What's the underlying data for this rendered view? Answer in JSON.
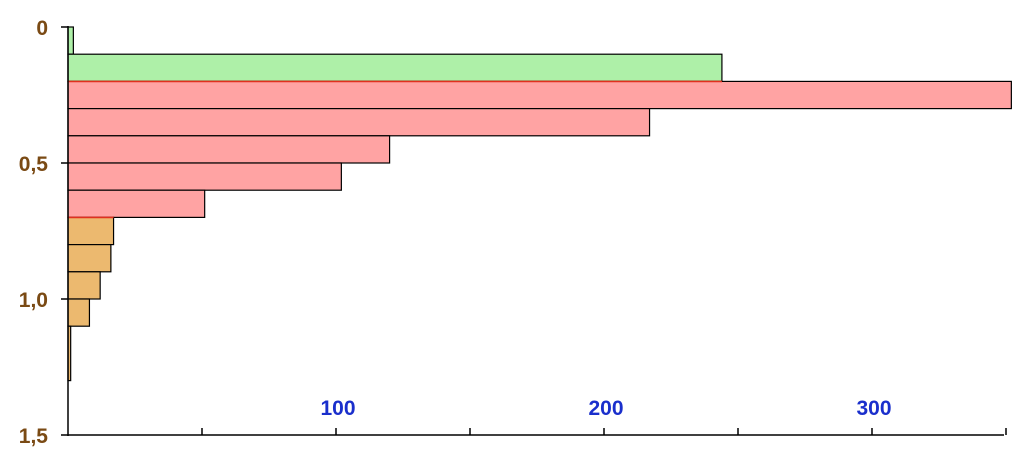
{
  "chart_data": {
    "type": "area",
    "title": "",
    "xlabel": "",
    "ylabel": "",
    "xlim": [
      0,
      350
    ],
    "ylim": [
      0,
      1.5
    ],
    "y_inverted": true,
    "grid": false,
    "y_ticks": [
      {
        "value": 0,
        "label": "0"
      },
      {
        "value": 0.5,
        "label": "0,5"
      },
      {
        "value": 1.0,
        "label": "1,0"
      },
      {
        "value": 1.5,
        "label": "1,5"
      }
    ],
    "x_ticks": [
      {
        "value": 50,
        "label": ""
      },
      {
        "value": 100,
        "label": "100"
      },
      {
        "value": 150,
        "label": ""
      },
      {
        "value": 200,
        "label": "200"
      },
      {
        "value": 250,
        "label": ""
      },
      {
        "value": 300,
        "label": "300"
      },
      {
        "value": 350,
        "label": ""
      }
    ],
    "colors": {
      "axis": "#000000",
      "ytick_text": "#7a4a14",
      "xtick_text": "#1a2fcc",
      "boundary_line": "#e0301e"
    },
    "series": [
      {
        "fill": "#aef0a8",
        "steps": [
          {
            "x": 2,
            "y0": 0.0,
            "y1": 0.1
          },
          {
            "x": 244,
            "y0": 0.1,
            "y1": 0.2
          }
        ]
      },
      {
        "fill": "#ffa3a3",
        "steps": [
          {
            "x": 352,
            "y0": 0.2,
            "y1": 0.3
          },
          {
            "x": 217,
            "y0": 0.3,
            "y1": 0.4
          },
          {
            "x": 120,
            "y0": 0.4,
            "y1": 0.5
          },
          {
            "x": 102,
            "y0": 0.5,
            "y1": 0.6
          },
          {
            "x": 51,
            "y0": 0.6,
            "y1": 0.7
          }
        ]
      },
      {
        "fill": "#ecb96f",
        "steps": [
          {
            "x": 17,
            "y0": 0.7,
            "y1": 0.8
          },
          {
            "x": 16,
            "y0": 0.8,
            "y1": 0.9
          },
          {
            "x": 12,
            "y0": 0.9,
            "y1": 1.0
          },
          {
            "x": 8,
            "y0": 1.0,
            "y1": 1.1
          },
          {
            "x": 1,
            "y0": 1.1,
            "y1": 1.3
          }
        ]
      }
    ]
  }
}
